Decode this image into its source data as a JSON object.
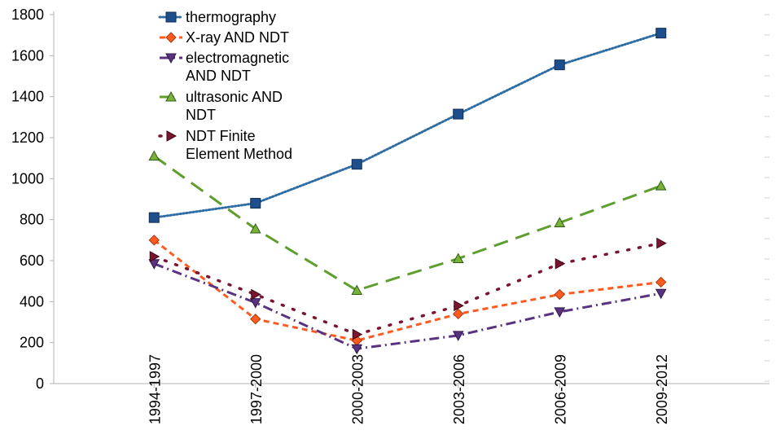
{
  "chart_data": {
    "type": "line",
    "title": "",
    "xlabel": "",
    "ylabel": "",
    "categories": [
      "1994-1997",
      "1997-2000",
      "2000-2003",
      "2003-2006",
      "2006-2009",
      "2009-2012"
    ],
    "ylim": [
      0,
      1800
    ],
    "yticks": [
      "0",
      "200",
      "400",
      "600",
      "800",
      "1000",
      "1200",
      "1400",
      "1600",
      "1800"
    ],
    "grid": false,
    "legend_position": "top-left",
    "series": [
      {
        "name": "thermography",
        "legend_lines": [
          "thermography"
        ],
        "values": [
          810,
          880,
          1070,
          1315,
          1555,
          1710
        ],
        "color": "#2e6da4",
        "marker": "square",
        "marker_color": "#1f4e8c",
        "dash": "dotted"
      },
      {
        "name": "X-ray AND NDT",
        "legend_lines": [
          "X-ray AND NDT"
        ],
        "values": [
          700,
          315,
          210,
          340,
          435,
          495
        ],
        "color": "#ff5a1f",
        "marker": "diamond",
        "marker_color": "#ff5a1f",
        "dash": "short-dash"
      },
      {
        "name": "electromagnetic AND NDT",
        "legend_lines": [
          "electromagnetic",
          "AND NDT"
        ],
        "values": [
          585,
          395,
          170,
          235,
          350,
          440
        ],
        "color": "#5a3380",
        "marker": "triangle-down",
        "marker_color": "#5a3380",
        "dash": "dash-dot"
      },
      {
        "name": "ultrasonic AND NDT",
        "legend_lines": [
          "ultrasonic AND",
          "NDT"
        ],
        "values": [
          1110,
          755,
          455,
          610,
          785,
          965
        ],
        "color": "#5e9e2e",
        "marker": "triangle-up",
        "marker_color": "#79b23a",
        "dash": "long-dash"
      },
      {
        "name": "NDT Finite Element Method",
        "legend_lines": [
          "NDT Finite",
          "Element Method"
        ],
        "values": [
          620,
          435,
          240,
          380,
          585,
          685
        ],
        "color": "#7a1530",
        "marker": "triangle-right",
        "marker_color": "#7a1530",
        "dash": "sparse-dot"
      }
    ]
  }
}
